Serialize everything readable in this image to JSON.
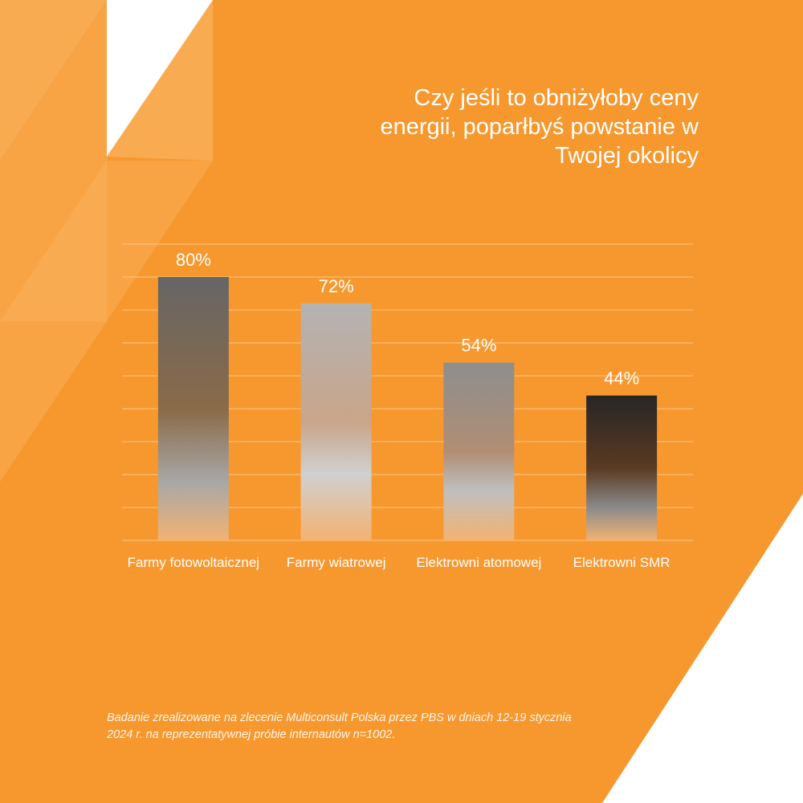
{
  "chart_data": {
    "type": "bar",
    "title": "Czy jeśli to obniżyłoby ceny energii, poparłbyś powstanie w Twojej okolicy",
    "categories": [
      "Farmy fotowoltaicznej",
      "Farmy wiatrowej",
      "Elektrowni atomowej",
      "Elektrowni SMR"
    ],
    "values": [
      80,
      72,
      54,
      44
    ],
    "value_labels": [
      "80%",
      "72%",
      "54%",
      "44%"
    ],
    "ylim": [
      0,
      90
    ],
    "yticks": [
      0,
      10,
      20,
      30,
      40,
      50,
      60,
      70,
      80,
      90
    ],
    "grid": true,
    "note": "Badanie zrealizowane na zlecenie Multiconsult Polska przez PBS w dniach 12-19 stycznia 2024 r. na reprezentatywnej próbie internautów n=1002."
  }
}
